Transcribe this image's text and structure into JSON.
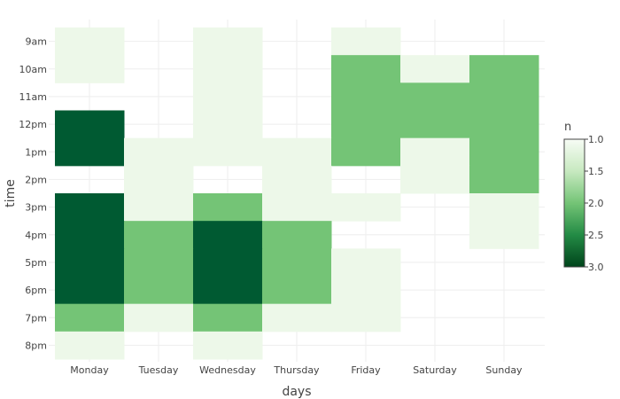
{
  "chart_data": {
    "type": "heatmap",
    "xlabel": "days",
    "ylabel": "time",
    "x": [
      "Monday",
      "Tuesday",
      "Wednesday",
      "Thursday",
      "Friday",
      "Saturday",
      "Sunday"
    ],
    "y": [
      "9am",
      "10am",
      "11am",
      "12pm",
      "1pm",
      "2pm",
      "3pm",
      "4pm",
      "5pm",
      "6pm",
      "7pm",
      "8pm"
    ],
    "z": [
      [
        1,
        null,
        1,
        null,
        1,
        null,
        null
      ],
      [
        1,
        null,
        1,
        null,
        2,
        1,
        2
      ],
      [
        null,
        null,
        1,
        null,
        2,
        2,
        2
      ],
      [
        3,
        null,
        1,
        null,
        2,
        2,
        2
      ],
      [
        3,
        1,
        1,
        1,
        2,
        1,
        2
      ],
      [
        null,
        1,
        null,
        1,
        null,
        1,
        2
      ],
      [
        3,
        1,
        2,
        1,
        1,
        null,
        1
      ],
      [
        3,
        2,
        3,
        2,
        null,
        null,
        1
      ],
      [
        3,
        2,
        3,
        2,
        1,
        null,
        null
      ],
      [
        3,
        2,
        3,
        2,
        1,
        null,
        null
      ],
      [
        2,
        1,
        2,
        1,
        1,
        null,
        null
      ],
      [
        1,
        null,
        1,
        null,
        null,
        null,
        null
      ]
    ],
    "colorscale": "Greens",
    "zlim": [
      1,
      3
    ],
    "colorbar": {
      "title": "n",
      "ticks": [
        "1.0",
        "1.5",
        "2.0",
        "2.5",
        "3.0"
      ]
    },
    "colors": {
      "low": "#edf8e9",
      "mid": "#74c476",
      "high": "#005a32"
    },
    "grid": true,
    "legend_position": "right"
  }
}
